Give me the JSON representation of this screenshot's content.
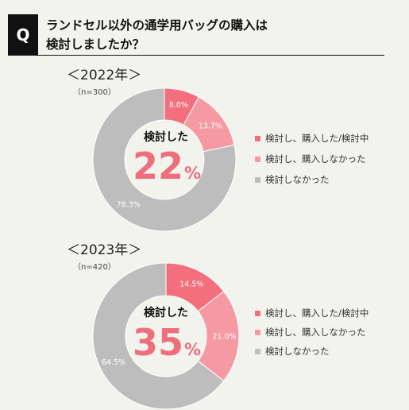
{
  "question": {
    "badge": "Q",
    "title": "ランドセル以外の通学用バッグの購入は\n検討しましたか？"
  },
  "colors": {
    "considering_bought": "#f46f7d",
    "considering_not_bought": "#f59aa2",
    "not_considered": "#bdbdbd",
    "accent": "#ee6e7e"
  },
  "chart_data": [
    {
      "type": "pie",
      "title": "＜2022年＞",
      "subtitle": "（n=300）",
      "center_label": "検討した",
      "center_value": "22",
      "center_unit": "%",
      "categories": [
        "検討し、購入した/検討中",
        "検討し、購入しなかった",
        "検討しなかった"
      ],
      "values": [
        8.0,
        13.7,
        78.3
      ],
      "data_labels": [
        "8.0%",
        "13.7%",
        "78.3%"
      ],
      "legend_placement": "right"
    },
    {
      "type": "pie",
      "title": "＜2023年＞",
      "subtitle": "（n=420）",
      "center_label": "検討した",
      "center_value": "35",
      "center_unit": "%",
      "categories": [
        "検討し、購入した/検討中",
        "検討し、購入しなかった",
        "検討しなかった"
      ],
      "values": [
        14.5,
        21.0,
        64.5
      ],
      "data_labels": [
        "14.5%",
        "21.0%",
        "64.5%"
      ],
      "legend_placement": "right"
    }
  ]
}
